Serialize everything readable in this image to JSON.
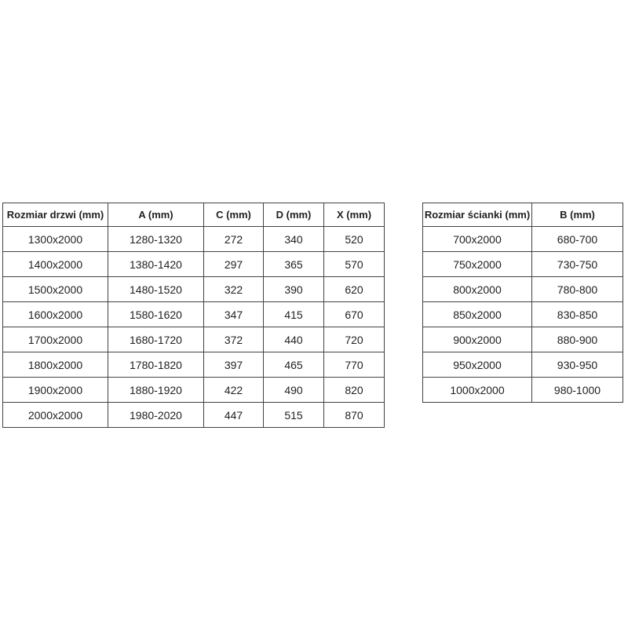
{
  "colors": {
    "background": "#ffffff",
    "border": "#424242",
    "text": "#1f1f1f"
  },
  "tables": [
    {
      "name": "door-sizes",
      "headers": [
        "Rozmiar drzwi (mm)",
        "A (mm)",
        "C (mm)",
        "D (mm)",
        "X (mm)"
      ],
      "rows": [
        [
          "1300x2000",
          "1280-1320",
          "272",
          "340",
          "520"
        ],
        [
          "1400x2000",
          "1380-1420",
          "297",
          "365",
          "570"
        ],
        [
          "1500x2000",
          "1480-1520",
          "322",
          "390",
          "620"
        ],
        [
          "1600x2000",
          "1580-1620",
          "347",
          "415",
          "670"
        ],
        [
          "1700x2000",
          "1680-1720",
          "372",
          "440",
          "720"
        ],
        [
          "1800x2000",
          "1780-1820",
          "397",
          "465",
          "770"
        ],
        [
          "1900x2000",
          "1880-1920",
          "422",
          "490",
          "820"
        ],
        [
          "2000x2000",
          "1980-2020",
          "447",
          "515",
          "870"
        ]
      ]
    },
    {
      "name": "wall-sizes",
      "headers": [
        "Rozmiar ścianki (mm)",
        "B (mm)"
      ],
      "rows": [
        [
          "700x2000",
          "680-700"
        ],
        [
          "750x2000",
          "730-750"
        ],
        [
          "800x2000",
          "780-800"
        ],
        [
          "850x2000",
          "830-850"
        ],
        [
          "900x2000",
          "880-900"
        ],
        [
          "950x2000",
          "930-950"
        ],
        [
          "1000x2000",
          "980-1000"
        ]
      ]
    }
  ]
}
